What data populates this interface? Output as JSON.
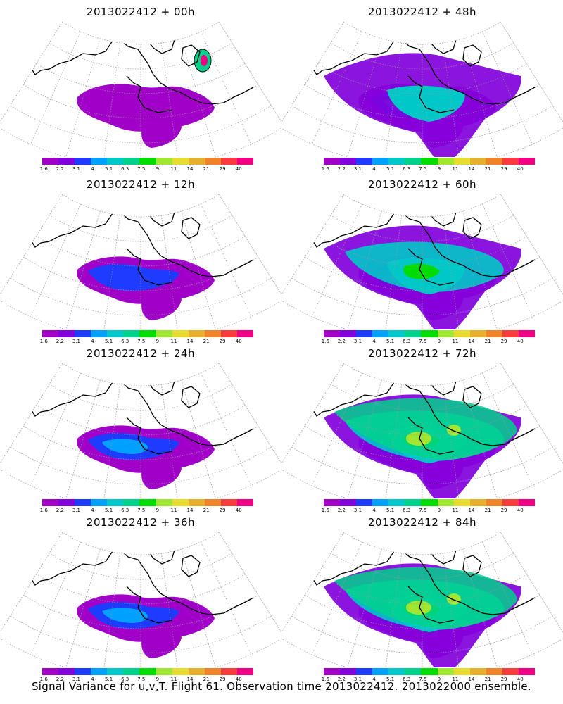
{
  "panels": [
    {
      "title": "2013022412 + 00h",
      "level": 0
    },
    {
      "title": "2013022412 + 48h",
      "level": 3
    },
    {
      "title": "2013022412 + 12h",
      "level": 1
    },
    {
      "title": "2013022412 + 60h",
      "level": 4
    },
    {
      "title": "2013022412 + 24h",
      "level": 2
    },
    {
      "title": "2013022412 + 72h",
      "level": 5
    },
    {
      "title": "2013022412 + 36h",
      "level": 2
    },
    {
      "title": "2013022412 + 84h",
      "level": 5
    }
  ],
  "colorbar": {
    "colors": [
      "#a000c8",
      "#8200dc",
      "#1e3cff",
      "#00a0ff",
      "#00c8c8",
      "#00d28c",
      "#00dc00",
      "#a0e632",
      "#e6dc32",
      "#e6af2d",
      "#f08228",
      "#fa3c3c",
      "#f00082"
    ],
    "labels": [
      "1.6",
      "2.2",
      "3.1",
      "4",
      "5.1",
      "6.3",
      "7.5",
      "9",
      "11",
      "14",
      "21",
      "29",
      "40"
    ]
  },
  "footer": "Signal Variance for u,v,T. Flight 61. Observation time 2013022412. 2013022000 ensemble."
}
